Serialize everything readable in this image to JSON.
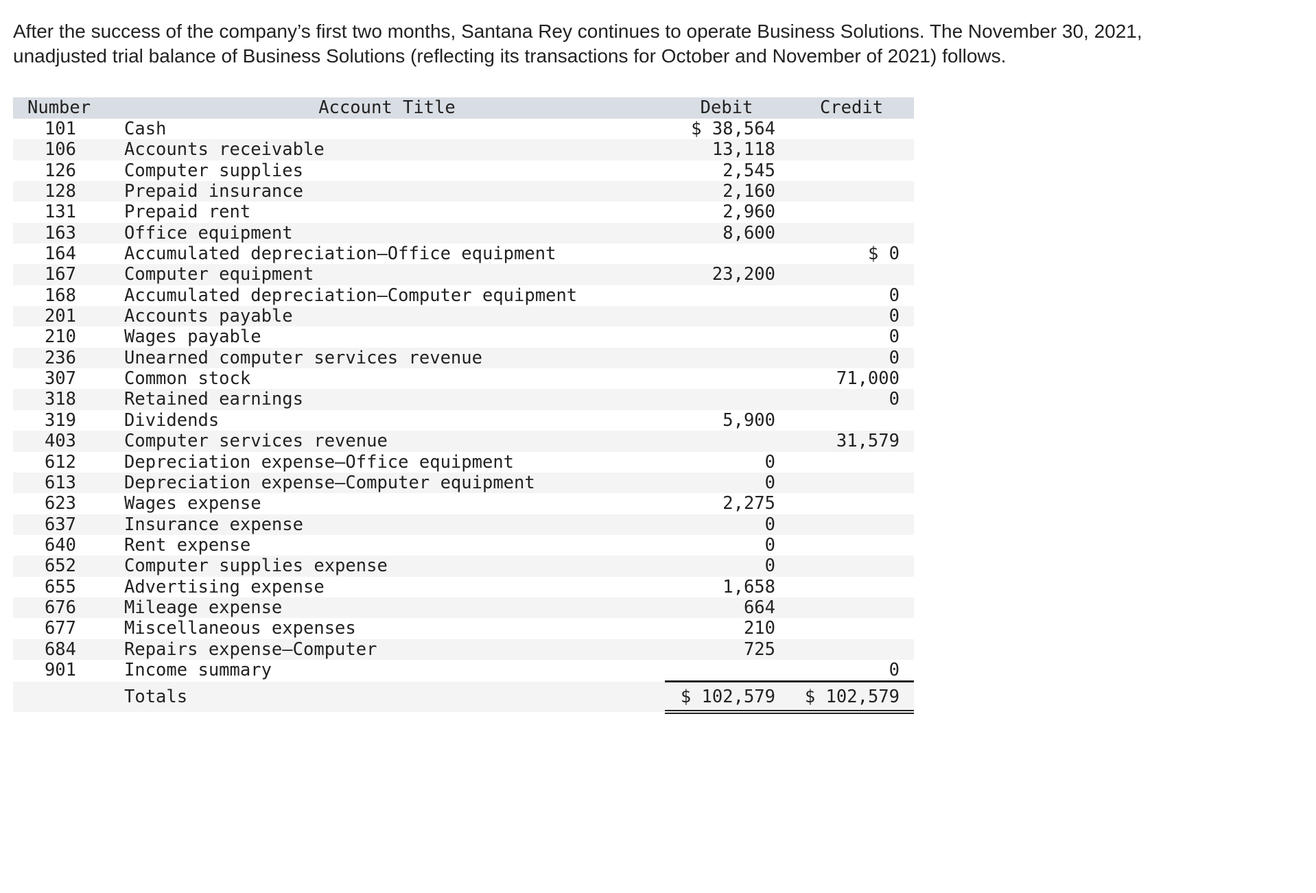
{
  "intro": {
    "line1": "After the success of the company’s first two months, Santana Rey continues to operate Business Solutions. The November 30, 2021,",
    "line2": "unadjusted trial balance of Business Solutions (reflecting its transactions for October and November of 2021) follows."
  },
  "table": {
    "headers": {
      "number": "Number",
      "title": "Account Title",
      "debit": "Debit",
      "credit": "Credit"
    },
    "rows": [
      {
        "number": "101",
        "title": "Cash",
        "debit": "$ 38,564",
        "credit": ""
      },
      {
        "number": "106",
        "title": "Accounts receivable",
        "debit": "13,118",
        "credit": ""
      },
      {
        "number": "126",
        "title": "Computer supplies",
        "debit": "2,545",
        "credit": ""
      },
      {
        "number": "128",
        "title": "Prepaid insurance",
        "debit": "2,160",
        "credit": ""
      },
      {
        "number": "131",
        "title": "Prepaid rent",
        "debit": "2,960",
        "credit": ""
      },
      {
        "number": "163",
        "title": "Office equipment",
        "debit": "8,600",
        "credit": ""
      },
      {
        "number": "164",
        "title": "Accumulated depreciation—Office equipment",
        "debit": "",
        "credit": "$ 0"
      },
      {
        "number": "167",
        "title": "Computer equipment",
        "debit": "23,200",
        "credit": ""
      },
      {
        "number": "168",
        "title": "Accumulated depreciation—Computer equipment",
        "debit": "",
        "credit": "0"
      },
      {
        "number": "201",
        "title": "Accounts payable",
        "debit": "",
        "credit": "0"
      },
      {
        "number": "210",
        "title": "Wages payable",
        "debit": "",
        "credit": "0"
      },
      {
        "number": "236",
        "title": "Unearned computer services revenue",
        "debit": "",
        "credit": "0"
      },
      {
        "number": "307",
        "title": "Common stock",
        "debit": "",
        "credit": "71,000"
      },
      {
        "number": "318",
        "title": "Retained earnings",
        "debit": "",
        "credit": "0"
      },
      {
        "number": "319",
        "title": "Dividends",
        "debit": "5,900",
        "credit": ""
      },
      {
        "number": "403",
        "title": "Computer services revenue",
        "debit": "",
        "credit": "31,579"
      },
      {
        "number": "612",
        "title": "Depreciation expense—Office equipment",
        "debit": "0",
        "credit": ""
      },
      {
        "number": "613",
        "title": "Depreciation expense—Computer equipment",
        "debit": "0",
        "credit": ""
      },
      {
        "number": "623",
        "title": "Wages expense",
        "debit": "2,275",
        "credit": ""
      },
      {
        "number": "637",
        "title": "Insurance expense",
        "debit": "0",
        "credit": ""
      },
      {
        "number": "640",
        "title": "Rent expense",
        "debit": "0",
        "credit": ""
      },
      {
        "number": "652",
        "title": "Computer supplies expense",
        "debit": "0",
        "credit": ""
      },
      {
        "number": "655",
        "title": "Advertising expense",
        "debit": "1,658",
        "credit": ""
      },
      {
        "number": "676",
        "title": "Mileage expense",
        "debit": "664",
        "credit": ""
      },
      {
        "number": "677",
        "title": "Miscellaneous expenses",
        "debit": "210",
        "credit": ""
      },
      {
        "number": "684",
        "title": "Repairs expense—Computer",
        "debit": "725",
        "credit": ""
      },
      {
        "number": "901",
        "title": "Income summary",
        "debit": "",
        "credit": "0"
      }
    ],
    "totals": {
      "label": "Totals",
      "debit": "$ 102,579",
      "credit": "$ 102,579"
    }
  }
}
